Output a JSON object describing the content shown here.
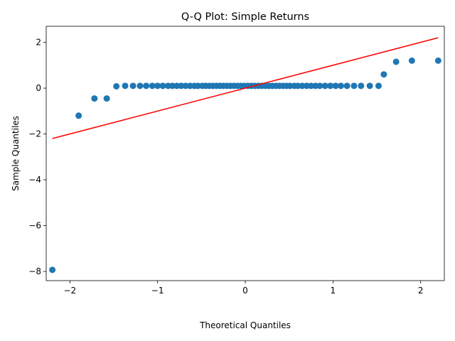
{
  "chart_data": {
    "type": "scatter",
    "title": "Q-Q Plot: Simple Returns",
    "xlabel": "Theoretical Quantiles",
    "ylabel": "Sample Quantiles",
    "xlim": [
      -2.27,
      2.27
    ],
    "ylim": [
      -8.4,
      2.7
    ],
    "xticks": [
      -2,
      -1,
      0,
      1,
      2
    ],
    "xtick_labels": [
      "−2",
      "−1",
      "0",
      "1",
      "2"
    ],
    "yticks": [
      -8,
      -6,
      -4,
      -2,
      0,
      2
    ],
    "ytick_labels": [
      "−8",
      "−6",
      "−4",
      "−2",
      "0",
      "2"
    ],
    "grid": false,
    "series": [
      {
        "marker_color": "#1f77b4",
        "x": [
          -2.2,
          -1.9,
          -1.72,
          -1.58,
          -1.47,
          -1.37,
          -1.28,
          -1.2,
          -1.13,
          -1.06,
          -1.0,
          -0.94,
          -0.88,
          -0.83,
          -0.78,
          -0.73,
          -0.68,
          -0.63,
          -0.58,
          -0.54,
          -0.49,
          -0.45,
          -0.41,
          -0.37,
          -0.33,
          -0.29,
          -0.25,
          -0.21,
          -0.17,
          -0.13,
          -0.09,
          -0.05,
          -0.01,
          0.03,
          0.07,
          0.11,
          0.15,
          0.19,
          0.23,
          0.27,
          0.31,
          0.35,
          0.39,
          0.43,
          0.47,
          0.51,
          0.56,
          0.6,
          0.65,
          0.7,
          0.75,
          0.8,
          0.85,
          0.91,
          0.97,
          1.03,
          1.09,
          1.16,
          1.24,
          1.32,
          1.42,
          1.52,
          1.58,
          1.72,
          1.9,
          2.2
        ],
        "y": [
          -7.93,
          -1.2,
          -0.45,
          -0.45,
          0.08,
          0.1,
          0.1,
          0.1,
          0.1,
          0.1,
          0.1,
          0.1,
          0.1,
          0.1,
          0.1,
          0.1,
          0.1,
          0.1,
          0.1,
          0.1,
          0.1,
          0.1,
          0.1,
          0.1,
          0.1,
          0.1,
          0.1,
          0.1,
          0.1,
          0.1,
          0.1,
          0.1,
          0.1,
          0.1,
          0.1,
          0.1,
          0.1,
          0.1,
          0.1,
          0.1,
          0.1,
          0.1,
          0.1,
          0.1,
          0.1,
          0.1,
          0.1,
          0.1,
          0.1,
          0.1,
          0.1,
          0.1,
          0.1,
          0.1,
          0.1,
          0.1,
          0.1,
          0.1,
          0.1,
          0.1,
          0.1,
          0.1,
          0.6,
          1.15,
          1.2,
          1.2
        ]
      }
    ],
    "reference_line": {
      "color": "#ff0000",
      "x": [
        -2.2,
        2.2
      ],
      "y": [
        -2.2,
        2.2
      ]
    }
  }
}
